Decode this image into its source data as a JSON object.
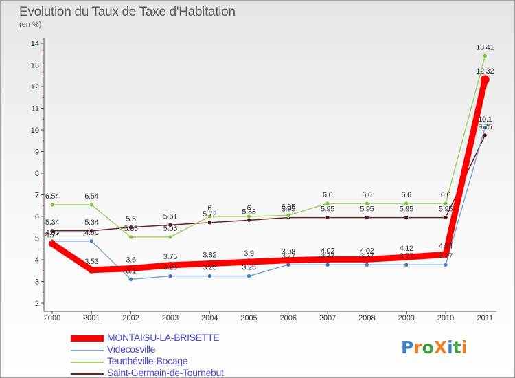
{
  "chart_data": {
    "type": "line",
    "title": "Evolution du Taux de Taxe d'Habitation",
    "subtitle": "(en %)",
    "xlabel": "",
    "ylabel": "",
    "x": [
      "2000",
      "2001",
      "2002",
      "2003",
      "2004",
      "2005",
      "2006",
      "2007",
      "2008",
      "2009",
      "2010",
      "2011"
    ],
    "yticks": [
      "2",
      "3",
      "4",
      "5",
      "6",
      "7",
      "8",
      "9",
      "10",
      "11",
      "12",
      "13",
      "14"
    ],
    "ylim": [
      2,
      14
    ],
    "grid": false,
    "legend_position": "bottom-left",
    "series": [
      {
        "name": "Saint-Germain-de-Tournebut",
        "color": "#6b2424",
        "marker": "#5a1414",
        "values": [
          5.34,
          5.34,
          5.5,
          5.61,
          5.72,
          5.83,
          5.95,
          5.95,
          5.95,
          5.95,
          5.95,
          9.75
        ],
        "labels": [
          "5.34",
          "5.34",
          "5.5",
          "5.61",
          "5.72",
          "5.83",
          "5.95",
          "5.95",
          "5.95",
          "5.95",
          "5.95",
          "9.75"
        ]
      },
      {
        "name": "Videcosville",
        "color": "#7fa7d2",
        "marker": "#3a78bd",
        "values": [
          4.86,
          4.86,
          3.1,
          3.25,
          3.25,
          3.25,
          3.77,
          3.77,
          3.77,
          3.77,
          3.77,
          10.1
        ],
        "labels": [
          "4.86",
          "4.86",
          "3.1",
          "3.25",
          "3.25",
          "3.25",
          "3.77",
          "3.77",
          "3.77",
          "3.77",
          "3.77",
          "10.1"
        ]
      },
      {
        "name": "Teurthéville-Bocage",
        "color": "#9fd36a",
        "marker": "#7ec03e",
        "values": [
          6.54,
          6.54,
          5.05,
          5.05,
          6.0,
          6.0,
          6.05,
          6.6,
          6.6,
          6.6,
          6.6,
          13.41
        ],
        "labels": [
          "6.54",
          "6.54",
          "5.05",
          "5.05",
          "6",
          "6",
          "6.05",
          "6.6",
          "6.6",
          "6.6",
          "6.6",
          "13.41"
        ]
      },
      {
        "name": "MONTAIGU-LA-BRISETTE",
        "color": "#ff0000",
        "marker": "#ff0000",
        "values": [
          4.74,
          3.53,
          3.6,
          3.75,
          3.82,
          3.9,
          3.98,
          4.02,
          4.02,
          4.12,
          4.24,
          12.32
        ],
        "labels": [
          "4.74",
          "3.53",
          "3.6",
          "3.75",
          "3.82",
          "3.9",
          "3.98",
          "4.02",
          "4.02",
          "4.12",
          "4.24",
          "12.32"
        ]
      }
    ],
    "legend_order": [
      "MONTAIGU-LA-BRISETTE",
      "Videcosville",
      "Teurthéville-Bocage",
      "Saint-Germain-de-Tournebut"
    ]
  },
  "logo": {
    "text": "ProXiti",
    "letters": [
      "P",
      "r",
      "o",
      "X",
      "i",
      "t",
      "i"
    ],
    "colors": [
      "#3f7fd0",
      "#f07c22",
      "#3f9f3f",
      "#f07c22",
      "#3f7fd0",
      "#3f9f3f",
      "#f07c22"
    ]
  }
}
